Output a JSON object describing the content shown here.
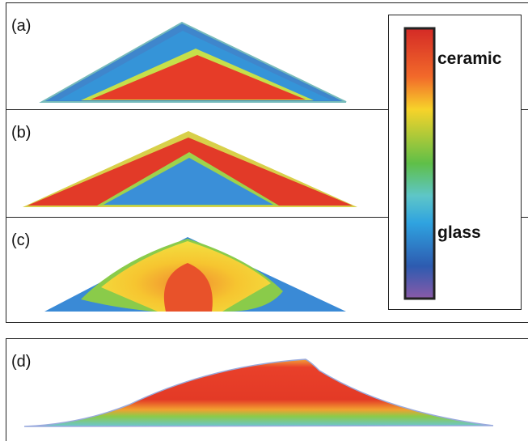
{
  "panels": [
    {
      "label": "(a)"
    },
    {
      "label": "(b)"
    },
    {
      "label": "(c)"
    },
    {
      "label": "(d)"
    }
  ],
  "legend": {
    "top": "ceramic",
    "bottom": "glass"
  }
}
